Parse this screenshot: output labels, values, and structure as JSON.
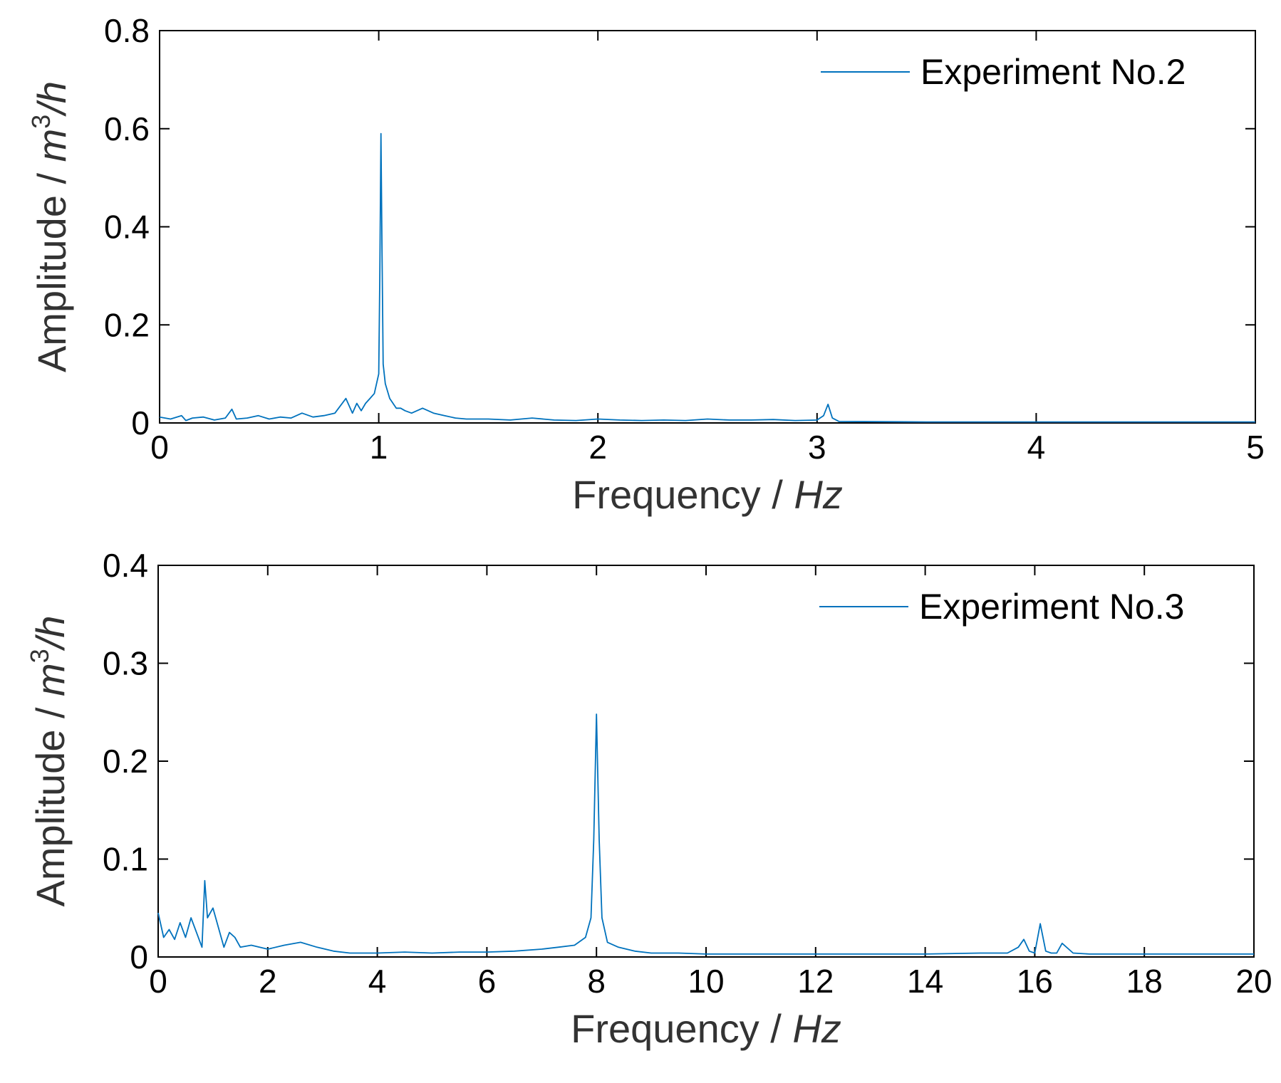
{
  "colors": {
    "series": "#0072BD",
    "axes": "#000000",
    "label": "#333333"
  },
  "chart_data": [
    {
      "type": "line",
      "xlabel": "Frequency / ",
      "xlabel_unit": "Hz",
      "ylabel": "Amplitude / ",
      "ylabel_unit_base": "m",
      "ylabel_unit_exp": "3",
      "ylabel_unit_tail": "/h",
      "xlim": [
        0,
        5
      ],
      "ylim": [
        0,
        0.8
      ],
      "xticks": [
        0,
        1,
        2,
        3,
        4,
        5
      ],
      "xtick_labels": [
        "0",
        "1",
        "2",
        "3",
        "4",
        "5"
      ],
      "yticks": [
        0,
        0.2,
        0.4,
        0.6,
        0.8
      ],
      "ytick_labels": [
        "0",
        "0.2",
        "0.4",
        "0.6",
        "0.8"
      ],
      "grid": false,
      "legend": "top-right",
      "series": [
        {
          "name": "Experiment No.2",
          "x": [
            0,
            0.05,
            0.1,
            0.12,
            0.15,
            0.2,
            0.25,
            0.3,
            0.33,
            0.35,
            0.4,
            0.45,
            0.5,
            0.55,
            0.6,
            0.65,
            0.7,
            0.75,
            0.8,
            0.85,
            0.88,
            0.9,
            0.92,
            0.94,
            0.96,
            0.98,
            1.0,
            1.005,
            1.01,
            1.015,
            1.02,
            1.03,
            1.05,
            1.08,
            1.1,
            1.12,
            1.15,
            1.2,
            1.25,
            1.3,
            1.35,
            1.4,
            1.5,
            1.6,
            1.7,
            1.8,
            1.9,
            2.0,
            2.1,
            2.2,
            2.3,
            2.4,
            2.5,
            2.6,
            2.7,
            2.8,
            2.9,
            3.0,
            3.03,
            3.05,
            3.07,
            3.1,
            3.5,
            4.0,
            4.5,
            5.0
          ],
          "y": [
            0.012,
            0.008,
            0.015,
            0.005,
            0.01,
            0.012,
            0.006,
            0.01,
            0.028,
            0.008,
            0.01,
            0.015,
            0.008,
            0.012,
            0.01,
            0.02,
            0.012,
            0.015,
            0.02,
            0.05,
            0.02,
            0.04,
            0.025,
            0.04,
            0.05,
            0.06,
            0.1,
            0.3,
            0.59,
            0.35,
            0.12,
            0.08,
            0.05,
            0.03,
            0.03,
            0.025,
            0.02,
            0.03,
            0.02,
            0.015,
            0.01,
            0.008,
            0.008,
            0.006,
            0.01,
            0.006,
            0.005,
            0.008,
            0.006,
            0.005,
            0.006,
            0.005,
            0.008,
            0.006,
            0.006,
            0.007,
            0.005,
            0.006,
            0.015,
            0.038,
            0.01,
            0.003,
            0.002,
            0.002,
            0.002,
            0.002
          ]
        }
      ]
    },
    {
      "type": "line",
      "xlabel": "Frequency / ",
      "xlabel_unit": "Hz",
      "ylabel": "Amplitude / ",
      "ylabel_unit_base": "m",
      "ylabel_unit_exp": "3",
      "ylabel_unit_tail": "/h",
      "xlim": [
        0,
        20
      ],
      "ylim": [
        0,
        0.4
      ],
      "xticks": [
        0,
        2,
        4,
        6,
        8,
        10,
        12,
        14,
        16,
        18,
        20
      ],
      "xtick_labels": [
        "0",
        "2",
        "4",
        "6",
        "8",
        "10",
        "12",
        "14",
        "16",
        "18",
        "20"
      ],
      "yticks": [
        0,
        0.1,
        0.2,
        0.3,
        0.4
      ],
      "ytick_labels": [
        "0",
        "0.1",
        "0.2",
        "0.3",
        "0.4"
      ],
      "grid": false,
      "legend": "top-right",
      "series": [
        {
          "name": "Experiment No.3",
          "x": [
            0,
            0.1,
            0.2,
            0.3,
            0.4,
            0.5,
            0.6,
            0.7,
            0.8,
            0.85,
            0.9,
            1.0,
            1.1,
            1.2,
            1.3,
            1.4,
            1.5,
            1.7,
            2.0,
            2.3,
            2.6,
            2.9,
            3.2,
            3.5,
            4.0,
            4.5,
            5.0,
            5.5,
            6.0,
            6.5,
            7.0,
            7.3,
            7.6,
            7.8,
            7.9,
            7.95,
            8.0,
            8.05,
            8.1,
            8.2,
            8.4,
            8.7,
            9.0,
            9.5,
            10.0,
            11.0,
            12.0,
            13.0,
            14.0,
            15.0,
            15.5,
            15.7,
            15.8,
            15.9,
            16.0,
            16.1,
            16.2,
            16.3,
            16.4,
            16.5,
            16.7,
            17.0,
            18.0,
            19.0,
            20.0
          ],
          "y": [
            0.045,
            0.02,
            0.028,
            0.018,
            0.035,
            0.02,
            0.04,
            0.025,
            0.01,
            0.078,
            0.04,
            0.05,
            0.03,
            0.01,
            0.025,
            0.02,
            0.01,
            0.012,
            0.008,
            0.012,
            0.015,
            0.01,
            0.006,
            0.004,
            0.004,
            0.005,
            0.004,
            0.005,
            0.005,
            0.006,
            0.008,
            0.01,
            0.012,
            0.02,
            0.04,
            0.12,
            0.248,
            0.12,
            0.04,
            0.015,
            0.01,
            0.006,
            0.004,
            0.004,
            0.003,
            0.003,
            0.003,
            0.003,
            0.003,
            0.004,
            0.004,
            0.01,
            0.018,
            0.006,
            0.004,
            0.034,
            0.006,
            0.004,
            0.004,
            0.014,
            0.004,
            0.003,
            0.003,
            0.003,
            0.003
          ]
        }
      ]
    }
  ]
}
